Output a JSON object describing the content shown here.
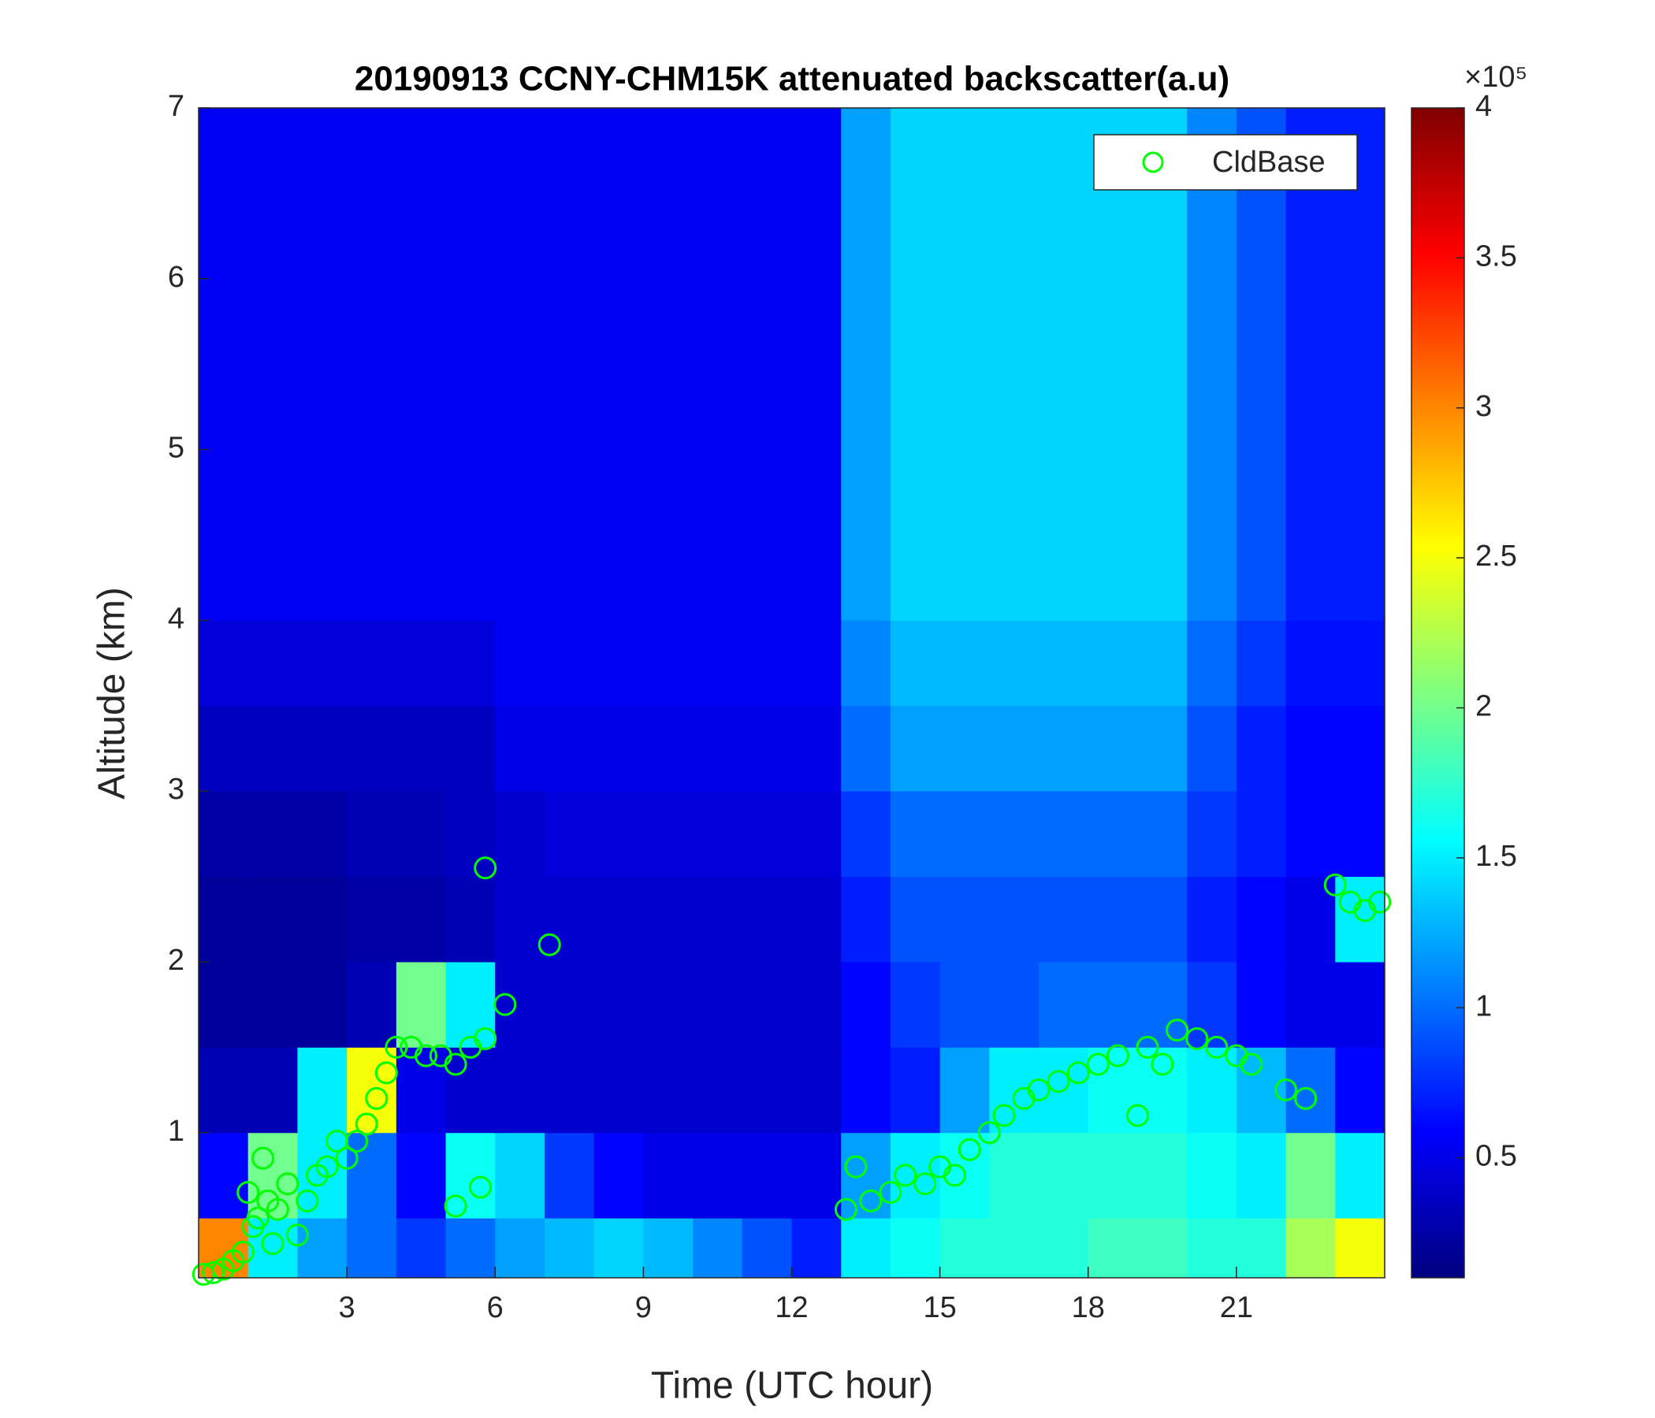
{
  "chart_data": {
    "type": "heatmap",
    "title": "20190913 CCNY-CHM15K attenuated backscatter(a.u)",
    "x_label": "Time (UTC hour)",
    "y_label": "Altitude (km)",
    "xlim": [
      0,
      24
    ],
    "ylim": [
      0.15,
      7
    ],
    "xticks": [
      3,
      6,
      9,
      12,
      15,
      18,
      21
    ],
    "yticks": [
      1,
      2,
      3,
      4,
      5,
      6,
      7
    ],
    "colormap": "jet",
    "clim": [
      10000,
      400000
    ],
    "colorbar_label": "×10⁵",
    "cticks": [
      {
        "value": 50000,
        "label": "0.5"
      },
      {
        "value": 100000,
        "label": "1"
      },
      {
        "value": 150000,
        "label": "1.5"
      },
      {
        "value": 200000,
        "label": "2"
      },
      {
        "value": 250000,
        "label": "2.5"
      },
      {
        "value": 300000,
        "label": "3"
      },
      {
        "value": 350000,
        "label": "3.5"
      },
      {
        "value": 400000,
        "label": "4"
      }
    ],
    "xbins": [
      0,
      1,
      2,
      3,
      4,
      5,
      6,
      7,
      8,
      9,
      10,
      11,
      12,
      13,
      14,
      15,
      16,
      17,
      18,
      19,
      20,
      21,
      22,
      23,
      24
    ],
    "ybins": [
      0.15,
      0.5,
      1,
      1.5,
      2,
      2.5,
      3,
      3.5,
      4,
      4.5,
      5,
      5.5,
      6,
      6.5,
      7
    ],
    "z": [
      [
        300000,
        150000,
        120000,
        100000,
        80000,
        100000,
        120000,
        130000,
        140000,
        130000,
        110000,
        90000,
        70000,
        150000,
        160000,
        170000,
        170000,
        170000,
        180000,
        180000,
        170000,
        170000,
        220000,
        250000
      ],
      [
        60000,
        200000,
        150000,
        100000,
        60000,
        160000,
        140000,
        80000,
        60000,
        50000,
        50000,
        50000,
        50000,
        120000,
        150000,
        160000,
        170000,
        170000,
        170000,
        170000,
        160000,
        150000,
        200000,
        150000
      ],
      [
        30000,
        30000,
        150000,
        250000,
        50000,
        40000,
        40000,
        40000,
        40000,
        40000,
        40000,
        40000,
        40000,
        60000,
        70000,
        120000,
        150000,
        150000,
        160000,
        160000,
        150000,
        130000,
        100000,
        60000
      ],
      [
        20000,
        20000,
        20000,
        30000,
        200000,
        150000,
        40000,
        40000,
        40000,
        40000,
        40000,
        40000,
        40000,
        60000,
        80000,
        90000,
        90000,
        100000,
        100000,
        100000,
        80000,
        60000,
        50000,
        50000
      ],
      [
        20000,
        20000,
        20000,
        25000,
        25000,
        30000,
        40000,
        40000,
        40000,
        40000,
        40000,
        40000,
        40000,
        70000,
        90000,
        90000,
        90000,
        90000,
        90000,
        90000,
        70000,
        60000,
        50000,
        150000
      ],
      [
        25000,
        25000,
        25000,
        30000,
        30000,
        35000,
        40000,
        45000,
        45000,
        45000,
        45000,
        45000,
        45000,
        80000,
        100000,
        100000,
        100000,
        100000,
        100000,
        100000,
        80000,
        70000,
        60000,
        60000
      ],
      [
        35000,
        35000,
        35000,
        35000,
        35000,
        35000,
        50000,
        50000,
        50000,
        50000,
        50000,
        50000,
        50000,
        100000,
        120000,
        120000,
        120000,
        120000,
        120000,
        120000,
        90000,
        70000,
        60000,
        60000
      ],
      [
        45000,
        45000,
        45000,
        45000,
        45000,
        45000,
        55000,
        55000,
        55000,
        55000,
        55000,
        55000,
        55000,
        110000,
        130000,
        130000,
        130000,
        130000,
        130000,
        130000,
        100000,
        80000,
        65000,
        65000
      ],
      [
        55000,
        55000,
        55000,
        55000,
        55000,
        55000,
        55000,
        55000,
        55000,
        55000,
        55000,
        55000,
        55000,
        120000,
        140000,
        140000,
        140000,
        140000,
        140000,
        140000,
        110000,
        90000,
        70000,
        70000
      ],
      [
        55000,
        55000,
        55000,
        55000,
        55000,
        55000,
        55000,
        55000,
        55000,
        55000,
        55000,
        55000,
        55000,
        120000,
        140000,
        140000,
        140000,
        140000,
        140000,
        140000,
        110000,
        90000,
        70000,
        70000
      ],
      [
        55000,
        55000,
        55000,
        55000,
        55000,
        55000,
        55000,
        55000,
        55000,
        55000,
        55000,
        55000,
        55000,
        120000,
        140000,
        140000,
        140000,
        140000,
        140000,
        140000,
        110000,
        90000,
        70000,
        70000
      ],
      [
        55000,
        55000,
        55000,
        55000,
        55000,
        55000,
        55000,
        55000,
        55000,
        55000,
        55000,
        55000,
        55000,
        120000,
        140000,
        140000,
        140000,
        140000,
        140000,
        140000,
        110000,
        90000,
        70000,
        70000
      ],
      [
        55000,
        55000,
        55000,
        55000,
        55000,
        55000,
        55000,
        55000,
        55000,
        55000,
        55000,
        55000,
        55000,
        120000,
        140000,
        140000,
        140000,
        140000,
        140000,
        140000,
        110000,
        90000,
        70000,
        70000
      ],
      [
        55000,
        55000,
        55000,
        55000,
        55000,
        55000,
        55000,
        55000,
        55000,
        55000,
        55000,
        55000,
        55000,
        120000,
        140000,
        140000,
        140000,
        140000,
        140000,
        140000,
        110000,
        90000,
        70000,
        70000
      ]
    ],
    "legend_loc": "northeast",
    "series": [
      {
        "name": "CldBase",
        "type": "scatter",
        "color": "#00ff00",
        "x": [
          0.1,
          0.3,
          0.5,
          0.7,
          0.9,
          1.0,
          1.1,
          1.2,
          1.3,
          1.4,
          1.5,
          1.6,
          1.8,
          2.0,
          2.2,
          2.4,
          2.6,
          2.8,
          3.0,
          3.2,
          3.4,
          3.6,
          3.8,
          4.0,
          4.3,
          4.6,
          4.9,
          5.2,
          5.2,
          5.5,
          5.7,
          5.8,
          5.8,
          6.2,
          7.1,
          13.1,
          13.3,
          13.6,
          14.0,
          14.3,
          14.7,
          15.0,
          15.3,
          15.6,
          16.0,
          16.3,
          16.7,
          17.0,
          17.4,
          17.8,
          18.2,
          18.6,
          19.0,
          19.2,
          19.5,
          19.8,
          20.2,
          20.6,
          21.0,
          21.3,
          22.0,
          22.4,
          23.0,
          23.3,
          23.6,
          23.9
        ],
        "values": [
          0.17,
          0.18,
          0.2,
          0.25,
          0.3,
          0.65,
          0.45,
          0.5,
          0.85,
          0.6,
          0.35,
          0.55,
          0.7,
          0.4,
          0.6,
          0.75,
          0.8,
          0.95,
          0.85,
          0.95,
          1.05,
          1.2,
          1.35,
          1.5,
          1.5,
          1.45,
          1.45,
          1.4,
          0.57,
          1.5,
          0.68,
          1.55,
          2.55,
          1.75,
          2.1,
          0.55,
          0.8,
          0.6,
          0.65,
          0.75,
          0.7,
          0.8,
          0.75,
          0.9,
          1.0,
          1.1,
          1.2,
          1.25,
          1.3,
          1.35,
          1.4,
          1.45,
          1.1,
          1.5,
          1.4,
          1.6,
          1.55,
          1.5,
          1.45,
          1.4,
          1.25,
          1.2,
          2.45,
          2.35,
          2.3,
          2.35
        ]
      }
    ]
  }
}
